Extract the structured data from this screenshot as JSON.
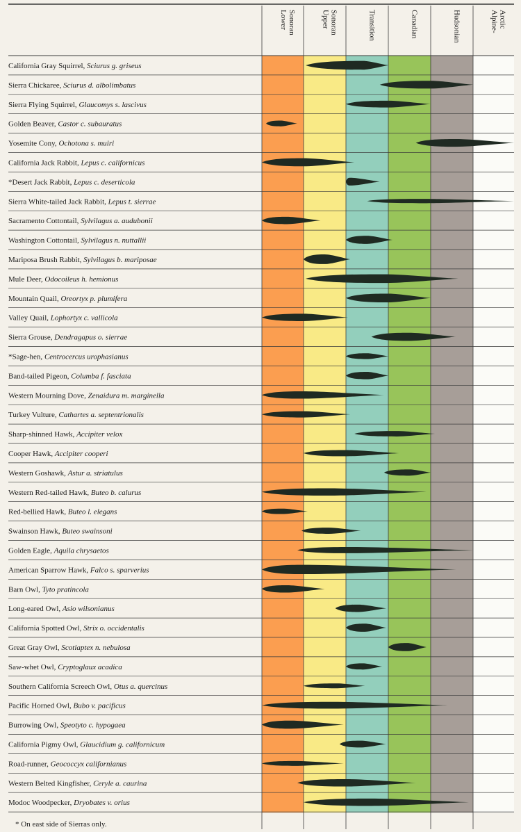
{
  "chart_data": {
    "type": "range-chart",
    "title": "",
    "zones": [
      {
        "label": [
          "Lower",
          "Sonoran"
        ],
        "color": "#fb9e50"
      },
      {
        "label": [
          "Upper",
          "Sonoran"
        ],
        "color": "#f9ea86"
      },
      {
        "label": [
          "Transition"
        ],
        "color": "#93cfbc"
      },
      {
        "label": [
          "Canadian"
        ],
        "color": "#98c45a"
      },
      {
        "label": [
          "Hudsonian"
        ],
        "color": "#a79e98"
      },
      {
        "label": [
          "Alpine-",
          "Arctic"
        ],
        "color": "#fbfbf7"
      }
    ],
    "species": [
      {
        "common": "California Gray Squirrel",
        "scientific": "Sciurus g. griseus",
        "range": [
          1.05,
          3.0
        ],
        "peak": 2.4,
        "thickness": 0.45
      },
      {
        "common": "Sierra Chickaree",
        "scientific": "Sciurus d. albolimbatus",
        "range": [
          2.8,
          5.0
        ],
        "peak": 4.0,
        "thickness": 0.4
      },
      {
        "common": "Sierra Flying Squirrel",
        "scientific": "Glaucomys s. lascivus",
        "range": [
          2.0,
          4.0
        ],
        "peak": 3.0,
        "thickness": 0.35
      },
      {
        "common": "Golden Beaver",
        "scientific": "Castor c. subauratus",
        "range": [
          0.1,
          0.85
        ],
        "peak": 0.45,
        "thickness": 0.3
      },
      {
        "common": "Yosemite Cony",
        "scientific": "Ochotona s. muiri",
        "range": [
          3.65,
          6.0
        ],
        "peak": 4.6,
        "thickness": 0.4
      },
      {
        "common": "California Jack Rabbit",
        "scientific": "Lepus c. californicus",
        "range": [
          0.0,
          2.2
        ],
        "peak": 1.0,
        "thickness": 0.42
      },
      {
        "common": "*Desert Jack Rabbit",
        "scientific": "Lepus c. deserticola",
        "range": [
          2.0,
          2.8
        ],
        "peak": 2.1,
        "thickness": 0.4
      },
      {
        "common": "Sierra White-tailed Jack Rabbit",
        "scientific": "Lepus t. sierrae",
        "range": [
          2.5,
          6.0
        ],
        "peak": 3.8,
        "thickness": 0.22
      },
      {
        "common": "Sacramento Cottontail",
        "scientific": "Sylvilagus a. audubonii",
        "range": [
          0.0,
          1.4
        ],
        "peak": 0.6,
        "thickness": 0.38
      },
      {
        "common": "Washington Cottontail",
        "scientific": "Sylvilagus n. nuttallii",
        "range": [
          2.0,
          3.1
        ],
        "peak": 2.5,
        "thickness": 0.42
      },
      {
        "common": "Mariposa Brush Rabbit",
        "scientific": "Sylvilagus b. mariposae",
        "range": [
          1.0,
          2.1
        ],
        "peak": 1.5,
        "thickness": 0.5
      },
      {
        "common": "Mule Deer",
        "scientific": "Odocoileus h. hemionus",
        "range": [
          1.05,
          4.65
        ],
        "peak": 2.9,
        "thickness": 0.45
      },
      {
        "common": "Mountain Quail",
        "scientific": "Oreortyx p. plumifera",
        "range": [
          2.0,
          4.0
        ],
        "peak": 3.0,
        "thickness": 0.45
      },
      {
        "common": "Valley Quail",
        "scientific": "Lophortyx c. vallicola",
        "range": [
          0.0,
          2.05
        ],
        "peak": 1.0,
        "thickness": 0.38
      },
      {
        "common": "Sierra Grouse",
        "scientific": "Dendragapus o. sierrae",
        "range": [
          2.6,
          4.6
        ],
        "peak": 3.5,
        "thickness": 0.42
      },
      {
        "common": "*Sage-hen",
        "scientific": "Centrocercus urophasianus",
        "range": [
          2.0,
          3.0
        ],
        "peak": 2.5,
        "thickness": 0.3
      },
      {
        "common": "Band-tailed Pigeon",
        "scientific": "Columba f. fasciata",
        "range": [
          2.0,
          3.0
        ],
        "peak": 2.5,
        "thickness": 0.38
      },
      {
        "common": "Western Mourning Dove",
        "scientific": "Zenaidura m. marginella",
        "range": [
          0.0,
          2.9
        ],
        "peak": 1.0,
        "thickness": 0.38
      },
      {
        "common": "Turkey Vulture",
        "scientific": "Cathartes a. septentrionalis",
        "range": [
          0.0,
          2.1
        ],
        "peak": 1.0,
        "thickness": 0.32
      },
      {
        "common": "Sharp-shinned Hawk",
        "scientific": "Accipiter velox",
        "range": [
          2.2,
          4.1
        ],
        "peak": 3.2,
        "thickness": 0.28
      },
      {
        "common": "Cooper Hawk",
        "scientific": "Accipiter cooperi",
        "range": [
          1.0,
          3.25
        ],
        "peak": 2.0,
        "thickness": 0.32
      },
      {
        "common": "Western Goshawk",
        "scientific": "Astur a. striatulus",
        "range": [
          2.9,
          4.0
        ],
        "peak": 3.5,
        "thickness": 0.32
      },
      {
        "common": "Western Red-tailed Hawk",
        "scientific": "Buteo b. calurus",
        "range": [
          0.0,
          3.9
        ],
        "peak": 1.6,
        "thickness": 0.38
      },
      {
        "common": "Red-bellied Hawk",
        "scientific": "Buteo l. elegans",
        "range": [
          0.0,
          1.1
        ],
        "peak": 0.5,
        "thickness": 0.28
      },
      {
        "common": "Swainson Hawk",
        "scientific": "Buteo swainsoni",
        "range": [
          0.95,
          2.35
        ],
        "peak": 1.6,
        "thickness": 0.32
      },
      {
        "common": "Golden Eagle",
        "scientific": "Aquila chrysaetos",
        "range": [
          0.85,
          5.0
        ],
        "peak": 2.1,
        "thickness": 0.32
      },
      {
        "common": "American Sparrow Hawk",
        "scientific": "Falco s. sparverius",
        "range": [
          0.0,
          4.6
        ],
        "peak": 1.0,
        "thickness": 0.48
      },
      {
        "common": "Barn Owl",
        "scientific": "Tyto pratincola",
        "range": [
          0.0,
          1.5
        ],
        "peak": 0.6,
        "thickness": 0.38
      },
      {
        "common": "Long-eared Owl",
        "scientific": "Asio wilsonianus",
        "range": [
          1.75,
          2.95
        ],
        "peak": 2.3,
        "thickness": 0.38
      },
      {
        "common": "California Spotted Owl",
        "scientific": "Strix o. occidentalis",
        "range": [
          2.0,
          2.95
        ],
        "peak": 2.45,
        "thickness": 0.42
      },
      {
        "common": "Great Gray Owl",
        "scientific": "Scotiaptex n. nebulosa",
        "range": [
          3.0,
          3.9
        ],
        "peak": 3.45,
        "thickness": 0.42
      },
      {
        "common": "Saw-whet Owl",
        "scientific": "Cryptoglaux acadica",
        "range": [
          2.0,
          2.85
        ],
        "peak": 2.4,
        "thickness": 0.32
      },
      {
        "common": "Southern California Screech Owl",
        "scientific": "Otus a. quercinus",
        "range": [
          1.0,
          2.45
        ],
        "peak": 1.8,
        "thickness": 0.25
      },
      {
        "common": "Pacific Horned Owl",
        "scientific": "Bubo v. pacificus",
        "range": [
          0.0,
          4.4
        ],
        "peak": 1.7,
        "thickness": 0.35
      },
      {
        "common": "Burrowing Owl",
        "scientific": "Speotyto c. hypogaea",
        "range": [
          0.0,
          1.95
        ],
        "peak": 0.7,
        "thickness": 0.42
      },
      {
        "common": "California Pigmy Owl",
        "scientific": "Glaucidium g. californicum",
        "range": [
          1.85,
          2.95
        ],
        "peak": 2.35,
        "thickness": 0.35
      },
      {
        "common": "Road-runner",
        "scientific": "Geococcyx californianus",
        "range": [
          0.0,
          1.95
        ],
        "peak": 0.8,
        "thickness": 0.25
      },
      {
        "common": "Western Belted Kingfisher",
        "scientific": "Ceryle a. caurina",
        "range": [
          0.85,
          3.65
        ],
        "peak": 2.0,
        "thickness": 0.38
      },
      {
        "common": "Modoc Woodpecker",
        "scientific": "Dryobates v. orius",
        "range": [
          1.0,
          4.9
        ],
        "peak": 2.6,
        "thickness": 0.38
      }
    ],
    "footnote": "* On east side of Sierras only."
  }
}
